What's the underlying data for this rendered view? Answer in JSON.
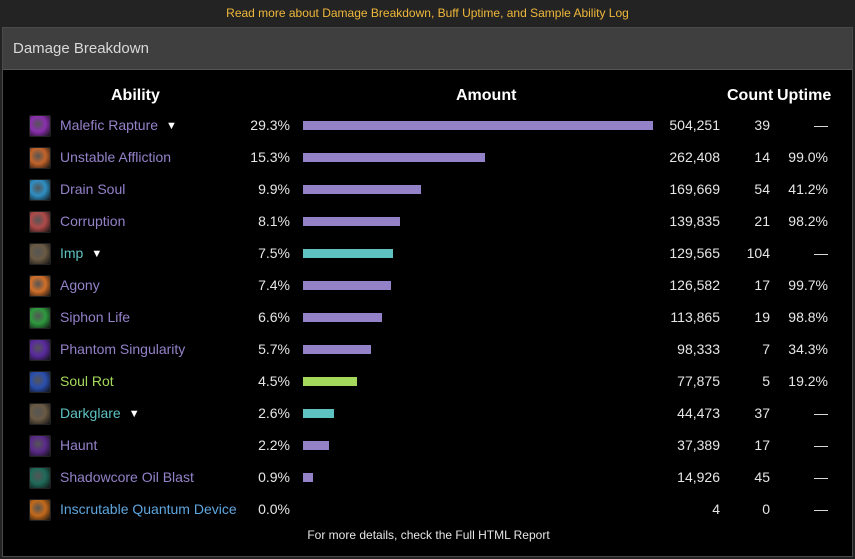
{
  "top_link": "Read more about Damage Breakdown, Buff Uptime, and Sample Ability Log",
  "panel": {
    "title": "Damage Breakdown",
    "columns": {
      "ability": "Ability",
      "amount": "Amount",
      "count": "Count",
      "uptime": "Uptime"
    },
    "footer": "For more details, check the Full HTML Report"
  },
  "colors": {
    "shadow": "#9482c9",
    "pet": "#5ec2c2",
    "nature": "#a5d95c",
    "item": "#5ea6df"
  },
  "rows": [
    {
      "name": "Malefic Rapture",
      "expand": true,
      "pct": "29.3%",
      "amount": "504,251",
      "count": "39",
      "uptime": "—",
      "fraction": 1.0,
      "color": "#9482c9",
      "icon": "malefic-rapture-icon",
      "icon_bg": "#8b2fb0"
    },
    {
      "name": "Unstable Affliction",
      "expand": false,
      "pct": "15.3%",
      "amount": "262,408",
      "count": "14",
      "uptime": "99.0%",
      "fraction": 0.5204,
      "color": "#9482c9",
      "icon": "unstable-affliction-icon",
      "icon_bg": "#c4642a"
    },
    {
      "name": "Drain Soul",
      "expand": false,
      "pct": "9.9%",
      "amount": "169,669",
      "count": "54",
      "uptime": "41.2%",
      "fraction": 0.3365,
      "color": "#9482c9",
      "icon": "drain-soul-icon",
      "icon_bg": "#2f8fc4"
    },
    {
      "name": "Corruption",
      "expand": false,
      "pct": "8.1%",
      "amount": "139,835",
      "count": "21",
      "uptime": "98.2%",
      "fraction": 0.2773,
      "color": "#9482c9",
      "icon": "corruption-icon",
      "icon_bg": "#b04a4a"
    },
    {
      "name": "Imp",
      "expand": true,
      "pct": "7.5%",
      "amount": "129,565",
      "count": "104",
      "uptime": "—",
      "fraction": 0.2569,
      "color": "#5ec2c2",
      "icon": "imp-icon",
      "icon_bg": "#6a5a44"
    },
    {
      "name": "Agony",
      "expand": false,
      "pct": "7.4%",
      "amount": "126,582",
      "count": "17",
      "uptime": "99.7%",
      "fraction": 0.251,
      "color": "#9482c9",
      "icon": "agony-icon",
      "icon_bg": "#d2702a"
    },
    {
      "name": "Siphon Life",
      "expand": false,
      "pct": "6.6%",
      "amount": "113,865",
      "count": "19",
      "uptime": "98.8%",
      "fraction": 0.2258,
      "color": "#9482c9",
      "icon": "siphon-life-icon",
      "icon_bg": "#2e9a3e"
    },
    {
      "name": "Phantom Singularity",
      "expand": false,
      "pct": "5.7%",
      "amount": "98,333",
      "count": "7",
      "uptime": "34.3%",
      "fraction": 0.195,
      "color": "#9482c9",
      "icon": "phantom-singularity-icon",
      "icon_bg": "#5a2aa0"
    },
    {
      "name": "Soul Rot",
      "expand": false,
      "pct": "4.5%",
      "amount": "77,875",
      "count": "5",
      "uptime": "19.2%",
      "fraction": 0.1544,
      "color": "#a5d95c",
      "icon": "soul-rot-icon",
      "icon_bg": "#2a4fb0"
    },
    {
      "name": "Darkglare",
      "expand": true,
      "pct": "2.6%",
      "amount": "44,473",
      "count": "37",
      "uptime": "—",
      "fraction": 0.0882,
      "color": "#5ec2c2",
      "icon": "darkglare-icon",
      "icon_bg": "#6a5a44"
    },
    {
      "name": "Haunt",
      "expand": false,
      "pct": "2.2%",
      "amount": "37,389",
      "count": "17",
      "uptime": "—",
      "fraction": 0.0741,
      "color": "#9482c9",
      "icon": "haunt-icon",
      "icon_bg": "#5a2a8a"
    },
    {
      "name": "Shadowcore Oil Blast",
      "expand": false,
      "pct": "0.9%",
      "amount": "14,926",
      "count": "45",
      "uptime": "—",
      "fraction": 0.0296,
      "color": "#9482c9",
      "icon": "shadowcore-oil-icon",
      "icon_bg": "#1f6a5a"
    },
    {
      "name": "Inscrutable Quantum Device",
      "expand": false,
      "pct": "0.0%",
      "amount": "4",
      "count": "0",
      "uptime": "—",
      "fraction": 0,
      "color": "#5ea6df",
      "icon": "quantum-device-icon",
      "icon_bg": "#c46a1a"
    }
  ]
}
